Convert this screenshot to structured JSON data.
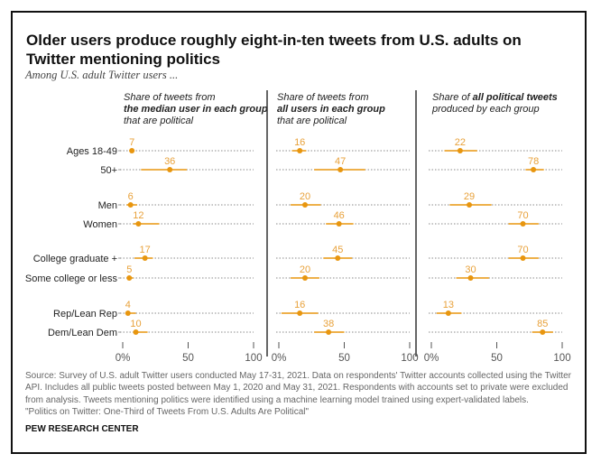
{
  "title": "Older users produce roughly eight-in-ten tweets from U.S. adults on Twitter mentioning politics",
  "subtitle": "Among U.S. adult Twitter users ...",
  "columns": [
    {
      "pre": "Share of tweets from",
      "bold": "the median user in each group",
      "post": "that are political"
    },
    {
      "pre": "Share of tweets from",
      "bold": "all users in each group",
      "post": "that are political"
    },
    {
      "pre": "Share of ",
      "bold": "all political tweets",
      "post": "produced by each group"
    }
  ],
  "note": "Source: Survey of U.S. adult Twitter users conducted May 17-31, 2021. Data on respondents' Twitter accounts collected using the Twitter API. Includes all public tweets posted between May 1, 2020 and May 31, 2021. Respondents with accounts set to private were excluded from analysis. Tweets mentioning politics were identified using a machine learning model trained using expert-validated labels.",
  "report_title": "\"Politics on Twitter: One-Third of Tweets From U.S. Adults Are Political\"",
  "brand": "PEW RESEARCH CENTER",
  "colors": {
    "accent": "#e8960f",
    "label": "#e8a13a"
  },
  "chart_data": {
    "type": "dot-plot with error bars",
    "categories": [
      "Ages 18-49",
      "50+",
      "Men",
      "Women",
      "College graduate +",
      "Some college or less",
      "Rep/Lean Rep",
      "Dem/Lean Dem"
    ],
    "xlim": [
      0,
      100
    ],
    "tick_labels": [
      "0%",
      "50",
      "100"
    ],
    "grid": "dotted row lines",
    "series": [
      {
        "values": [
          7,
          36,
          6,
          12,
          17,
          5,
          4,
          10
        ],
        "low": [
          5,
          14,
          3,
          8,
          9,
          3,
          2,
          8
        ],
        "high": [
          9,
          49,
          11,
          28,
          23,
          8,
          10,
          19
        ]
      },
      {
        "values": [
          16,
          47,
          20,
          46,
          45,
          20,
          16,
          38
        ],
        "low": [
          10,
          27,
          9,
          36,
          34,
          9,
          2,
          27
        ],
        "high": [
          21,
          66,
          32,
          57,
          56,
          31,
          30,
          50
        ]
      },
      {
        "values": [
          22,
          78,
          29,
          70,
          70,
          30,
          13,
          85
        ],
        "low": [
          10,
          72,
          14,
          59,
          59,
          19,
          4,
          77
        ],
        "high": [
          35,
          86,
          46,
          82,
          82,
          44,
          23,
          93
        ]
      }
    ]
  }
}
